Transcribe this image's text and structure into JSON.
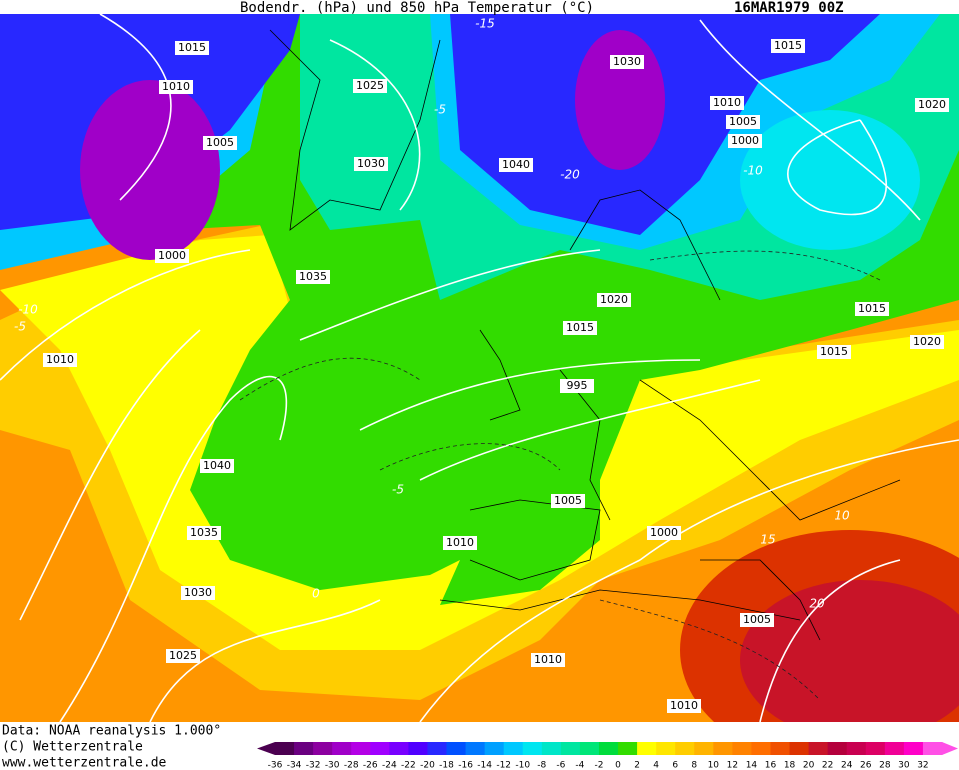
{
  "header": {
    "title": "Bodendr. (hPa) und 850 hPa Temperatur (°C)",
    "date": "16MAR1979 00Z"
  },
  "footer": {
    "source": "Data: NOAA reanalysis 1.000°",
    "copyright": "(C) Wetterzentrale",
    "url": "www.wetterzentrale.de"
  },
  "isobar_labels": [
    1015,
    1010,
    1005,
    1000,
    1010,
    1040,
    1035,
    1030,
    1025,
    1035,
    1030,
    1025,
    1040,
    1030,
    1015,
    1010,
    1005,
    1000,
    1020,
    1020,
    1015,
    995,
    1005,
    1010,
    1000,
    1005,
    1010,
    1010,
    1015,
    1015,
    1020
  ],
  "temperature_labels": [
    -10,
    -10,
    -5,
    0,
    10,
    15,
    20,
    -20,
    -15,
    -5,
    -5
  ],
  "colorbar": {
    "values": [
      -36,
      -34,
      -32,
      -30,
      -28,
      -26,
      -24,
      -22,
      -20,
      -18,
      -16,
      -14,
      -12,
      -10,
      -8,
      -6,
      -4,
      -2,
      0,
      2,
      4,
      6,
      8,
      10,
      12,
      14,
      16,
      18,
      20,
      22,
      24,
      26,
      28,
      30,
      32
    ],
    "colors": [
      "#4b0050",
      "#6a0080",
      "#8c00a0",
      "#a000c8",
      "#b400e6",
      "#a000ff",
      "#7800ff",
      "#5000ff",
      "#2828ff",
      "#0050ff",
      "#0078ff",
      "#00a0ff",
      "#00c8ff",
      "#00e6f0",
      "#00e6c8",
      "#00e6a0",
      "#00e678",
      "#00dc3c",
      "#32dc00",
      "#ffff00",
      "#ffe600",
      "#ffcd00",
      "#ffb400",
      "#ff9600",
      "#ff8200",
      "#ff6e00",
      "#f05000",
      "#dc3200",
      "#c81428",
      "#b4003c",
      "#c80050",
      "#dc0064",
      "#f00096",
      "#ff00c8",
      "#ff50e6"
    ]
  }
}
